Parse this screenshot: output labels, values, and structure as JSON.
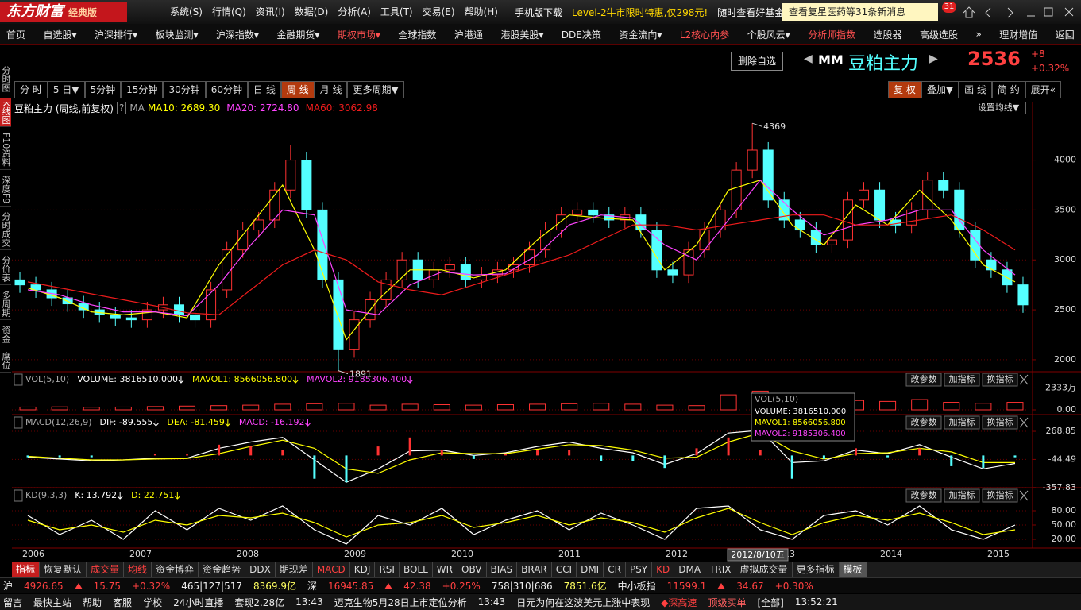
{
  "app": {
    "logo": "东方财富",
    "edition": "经典版",
    "menu": [
      "系统(S)",
      "行情(Q)",
      "资讯(I)",
      "数据(D)",
      "分析(A)",
      "工具(T)",
      "交易(E)",
      "帮助(H)"
    ],
    "links": [
      "手机版下载",
      "Level-2牛市限时特惠,仅298元!",
      "随时查看好基金"
    ],
    "notice": "查看复星医药等31条新消息",
    "badge": "31"
  },
  "nav": [
    {
      "label": "首页"
    },
    {
      "label": "自选股▾"
    },
    {
      "label": "沪深排行▾"
    },
    {
      "label": "板块监测▾"
    },
    {
      "label": "沪深指数▾"
    },
    {
      "label": "金融期货▾"
    },
    {
      "label": "期权市场▾",
      "highlight": true
    },
    {
      "label": "全球指数"
    },
    {
      "label": "沪港通"
    },
    {
      "label": "港股美股▾"
    },
    {
      "label": "DDE决策"
    },
    {
      "label": "资金流向▾"
    },
    {
      "label": "L2核心内参",
      "highlight": true
    },
    {
      "label": "个股风云▾"
    },
    {
      "label": "分析师指数",
      "highlight": true
    },
    {
      "label": "选股器"
    },
    {
      "label": "高级选股"
    },
    {
      "label": "»"
    },
    {
      "label": "理财增值"
    },
    {
      "label": "返回"
    }
  ],
  "sidebar": [
    {
      "label": "分时图"
    },
    {
      "label": "K线图",
      "active": true
    },
    {
      "label": "F10资料"
    },
    {
      "label": "深度F9"
    },
    {
      "label": "分时成交"
    },
    {
      "label": "分价表"
    },
    {
      "label": "多周期"
    },
    {
      "label": "资金"
    },
    {
      "label": "席位"
    }
  ],
  "quote": {
    "button": "删除自选",
    "code": "MM",
    "name": "豆粕主力",
    "price": 2536,
    "change": "+8",
    "change_pct": "+0.32%"
  },
  "periods": [
    {
      "label": "分 时"
    },
    {
      "label": "5 日▼"
    },
    {
      "label": "5分钟"
    },
    {
      "label": "15分钟"
    },
    {
      "label": "30分钟"
    },
    {
      "label": "60分钟"
    },
    {
      "label": "日 线"
    },
    {
      "label": "周 线",
      "active": true
    },
    {
      "label": "月 线"
    },
    {
      "label": "更多周期▼"
    }
  ],
  "tools": [
    {
      "label": "复 权",
      "active": true
    },
    {
      "label": "叠加▼"
    },
    {
      "label": "画 线"
    },
    {
      "label": "简 约"
    },
    {
      "label": "展开«"
    }
  ],
  "chart_header": {
    "help": "?",
    "ma": "MA",
    "setting": "设置均线▼"
  },
  "panel_buttons": [
    "改参数",
    "加指标",
    "换指标"
  ],
  "tooltip": {
    "date": "2012/8/10五"
  },
  "x_labels": [
    "2006",
    "2007",
    "2008",
    "2009",
    "2010",
    "2011",
    "2012",
    "2013",
    "2014",
    "2015"
  ],
  "indicator_tabs": [
    {
      "label": "指标",
      "active": true
    },
    {
      "label": "恢复默认"
    },
    {
      "label": "成交量",
      "red": true
    },
    {
      "label": "均线",
      "red": true
    },
    {
      "label": "资金博弈"
    },
    {
      "label": "资金趋势"
    },
    {
      "label": "DDX"
    },
    {
      "label": "期现差"
    },
    {
      "label": "MACD",
      "red": true
    },
    {
      "label": "KDJ"
    },
    {
      "label": "RSI"
    },
    {
      "label": "BOLL"
    },
    {
      "label": "WR"
    },
    {
      "label": "OBV"
    },
    {
      "label": "BIAS"
    },
    {
      "label": "BRAR"
    },
    {
      "label": "CCI"
    },
    {
      "label": "DMI"
    },
    {
      "label": "CR"
    },
    {
      "label": "PSY"
    },
    {
      "label": "KD",
      "red": true
    },
    {
      "label": "DMA"
    },
    {
      "label": "TRIX"
    },
    {
      "label": "虚拟成交量"
    },
    {
      "label": "更多指标"
    },
    {
      "label": "模板",
      "gray": true
    }
  ],
  "status": {
    "indices": [
      {
        "market": "沪",
        "value": 4926.65,
        "change": 15.75,
        "pct": "+0.32%",
        "breadth": "465|127|517",
        "amount": "8369.9亿"
      },
      {
        "market": "深",
        "value": 16945.85,
        "change": 42.38,
        "pct": "+0.25%",
        "breadth": "758|310|686",
        "amount": "7851.6亿"
      },
      {
        "market": "中小板指",
        "value": 11599.1,
        "change": 34.67,
        "pct": "+0.30%"
      }
    ],
    "bottom": [
      "留言",
      "最快主站",
      "帮助",
      "客服",
      "学校",
      "24小时直播",
      "套现2.28亿",
      "13:43",
      "迈克生物5月28日上市定位分析",
      "13:43",
      "日元为何在这波美元上涨中表现",
      "◆深高速",
      "顶级买单",
      "[全部]",
      "13:52:21"
    ]
  },
  "chart_data": [
    {
      "type": "candlestick",
      "title": "豆粕主力 (周线,前复权)",
      "open": [
        2800,
        2750,
        2700,
        2620,
        2560,
        2500,
        2450,
        2420,
        2400,
        2500,
        2550,
        2450,
        2400,
        2700,
        3100,
        3300,
        3400,
        3700,
        4000,
        3500,
        2800,
        2100,
        2400,
        2600,
        2800,
        3000,
        2800,
        2900,
        2950,
        2800,
        2850,
        2900,
        2950,
        3100,
        3300,
        3450,
        3500,
        3450,
        3400,
        3450,
        3300,
        2900,
        2850,
        3100,
        3300,
        3500,
        3900,
        4100,
        3600,
        3400,
        3300,
        3150,
        3200,
        3600,
        3700,
        3400,
        3350,
        3500,
        3800,
        3700,
        3300,
        3000,
        2900,
        2750
      ],
      "high": [
        2880,
        2830,
        2780,
        2700,
        2640,
        2580,
        2530,
        2500,
        2580,
        2630,
        2630,
        2530,
        2780,
        3180,
        3380,
        3480,
        3780,
        4150,
        4080,
        3580,
        2880,
        2480,
        2680,
        2880,
        3080,
        3080,
        2980,
        3030,
        3030,
        2930,
        2980,
        3030,
        3180,
        3380,
        3530,
        3580,
        3580,
        3530,
        3530,
        3530,
        3380,
        2980,
        3180,
        3380,
        3580,
        3980,
        4369,
        4180,
        3680,
        3480,
        3380,
        3280,
        3680,
        3780,
        3780,
        3480,
        3580,
        3880,
        3880,
        3780,
        3380,
        3080,
        2980,
        2830
      ],
      "low": [
        2670,
        2620,
        2540,
        2480,
        2420,
        2370,
        2340,
        2320,
        2320,
        2420,
        2370,
        2320,
        2320,
        2620,
        3020,
        3220,
        3320,
        3620,
        3420,
        2720,
        1891,
        2020,
        2320,
        2520,
        2720,
        2720,
        2720,
        2820,
        2720,
        2720,
        2770,
        2820,
        2870,
        3020,
        3220,
        3370,
        3370,
        3320,
        3320,
        3220,
        2820,
        2770,
        2770,
        3020,
        3220,
        3420,
        3820,
        3520,
        3320,
        3220,
        3070,
        3070,
        3120,
        3520,
        3320,
        3270,
        3270,
        3420,
        3620,
        3220,
        2920,
        2820,
        2670,
        2470
      ],
      "close": [
        2750,
        2700,
        2620,
        2560,
        2500,
        2450,
        2420,
        2400,
        2500,
        2550,
        2450,
        2400,
        2700,
        3100,
        3300,
        3400,
        3700,
        4000,
        3500,
        2800,
        2100,
        2400,
        2600,
        2800,
        3000,
        2800,
        2900,
        2950,
        2800,
        2850,
        2900,
        2950,
        3100,
        3300,
        3450,
        3500,
        3450,
        3400,
        3450,
        3300,
        2900,
        2850,
        3100,
        3300,
        3500,
        3900,
        4100,
        3600,
        3400,
        3300,
        3150,
        3200,
        3600,
        3700,
        3400,
        3350,
        3500,
        3800,
        3700,
        3300,
        3000,
        2900,
        2750,
        2550
      ],
      "up_color": "#ff3232",
      "down_color": "#54ffff",
      "annotations": [
        4369,
        1891
      ],
      "lines": [
        {
          "name": "MA10: 2689.30",
          "color": "#ffff00",
          "values": [
            2720,
            2620,
            2480,
            2450,
            2480,
            2420,
            2950,
            3350,
            3750,
            3100,
            2200,
            2600,
            2900,
            2900,
            2820,
            2900,
            3200,
            3450,
            3420,
            3400,
            2900,
            3150,
            3700,
            3800,
            3350,
            3150,
            3550,
            3350,
            3700,
            3400,
            2950,
            2780
          ]
        },
        {
          "name": "MA20: 2724.80",
          "color": "#ff44ff",
          "values": [
            2700,
            2650,
            2550,
            2480,
            2480,
            2440,
            2750,
            3150,
            3500,
            3450,
            2500,
            2450,
            2750,
            2880,
            2850,
            2860,
            3050,
            3350,
            3450,
            3420,
            3150,
            3000,
            3400,
            3800,
            3500,
            3250,
            3350,
            3400,
            3500,
            3500,
            3100,
            2850
          ]
        },
        {
          "name": "MA60: 3062.98",
          "color": "#ee1c1c",
          "values": [
            2780,
            2720,
            2660,
            2600,
            2540,
            2470,
            2450,
            2700,
            2950,
            3100,
            3000,
            2780,
            2700,
            2650,
            2750,
            2850,
            2950,
            3050,
            3200,
            3350,
            3350,
            3300,
            3350,
            3400,
            3450,
            3450,
            3350,
            3350,
            3400,
            3450,
            3300,
            3100
          ]
        }
      ],
      "ylim": [
        1880,
        4450
      ],
      "yticks": [
        2000,
        2500,
        3000,
        3500,
        4000
      ],
      "grid": true
    },
    {
      "type": "bar",
      "title": "VOL(5,10)",
      "series": [
        {
          "name": "VOLUME: 3816510.000",
          "color": "#ff3232",
          "values": [
            300,
            320,
            280,
            300,
            350,
            400,
            450,
            500,
            600,
            650,
            700,
            500,
            600,
            550,
            500,
            550,
            600,
            650,
            700,
            600,
            500,
            450,
            1600,
            2000,
            1200,
            900,
            1000,
            900,
            1100,
            800,
            700,
            800
          ]
        }
      ],
      "legend": [
        {
          "name": "MAVOL1: 8566056.800",
          "color": "#ffff00"
        },
        {
          "name": "MAVOL2: 9185306.400",
          "color": "#ff44ff"
        }
      ],
      "ylim": [
        0,
        3900
      ],
      "yticks": [
        {
          "value": 2333,
          "label": "2333万"
        },
        {
          "value": 0,
          "label": "0.00"
        }
      ],
      "grid": true
    },
    {
      "type": "macd",
      "title": "MACD(12,26,9)",
      "series": [
        {
          "name": "DIF: -89.555",
          "color": "#ffffff",
          "values": [
            -20,
            -40,
            -60,
            -50,
            -30,
            -30,
            80,
            150,
            200,
            -50,
            -300,
            -150,
            50,
            60,
            0,
            30,
            100,
            150,
            80,
            30,
            -100,
            20,
            250,
            280,
            -80,
            -60,
            60,
            20,
            120,
            -20,
            -150,
            -90
          ]
        },
        {
          "name": "DEA: -81.459",
          "color": "#ffff00",
          "values": [
            -10,
            -30,
            -50,
            -50,
            -40,
            -35,
            20,
            100,
            170,
            80,
            -150,
            -200,
            -50,
            30,
            20,
            20,
            70,
            120,
            110,
            60,
            -30,
            -20,
            150,
            250,
            50,
            -40,
            20,
            30,
            80,
            40,
            -80,
            -80
          ]
        },
        {
          "name": "MACD: -16.192",
          "color": "#ff44ff",
          "bars": true,
          "values": [
            -20,
            -20,
            -20,
            0,
            20,
            10,
            120,
            100,
            60,
            -260,
            -300,
            100,
            200,
            60,
            -40,
            20,
            60,
            60,
            -60,
            -60,
            -140,
            80,
            200,
            60,
            -260,
            -40,
            80,
            -20,
            80,
            -120,
            -140,
            -20
          ]
        }
      ],
      "ylim": [
        -360,
        420
      ],
      "yticks": [
        268.85,
        -44.49,
        -357.83
      ],
      "grid": true
    },
    {
      "type": "line",
      "title": "KD(9,3,3)",
      "series": [
        {
          "name": "K: 13.792",
          "color": "#ffffff",
          "values": [
            70,
            30,
            60,
            20,
            80,
            40,
            85,
            60,
            90,
            40,
            10,
            70,
            50,
            85,
            30,
            60,
            80,
            40,
            75,
            50,
            20,
            85,
            90,
            40,
            20,
            70,
            80,
            50,
            90,
            40,
            20,
            50
          ]
        },
        {
          "name": "D: 22.751",
          "color": "#ffff00",
          "values": [
            60,
            40,
            50,
            35,
            60,
            50,
            70,
            65,
            75,
            55,
            25,
            50,
            55,
            70,
            45,
            55,
            70,
            50,
            65,
            55,
            35,
            65,
            85,
            55,
            30,
            55,
            70,
            60,
            75,
            55,
            30,
            40
          ]
        }
      ],
      "ylim": [
        0,
        100
      ],
      "yticks": [
        {
          "value": 80,
          "label": "80.00"
        },
        {
          "value": 50,
          "label": "50.00"
        },
        {
          "value": 20,
          "label": "20.00"
        }
      ],
      "grid": true
    }
  ]
}
